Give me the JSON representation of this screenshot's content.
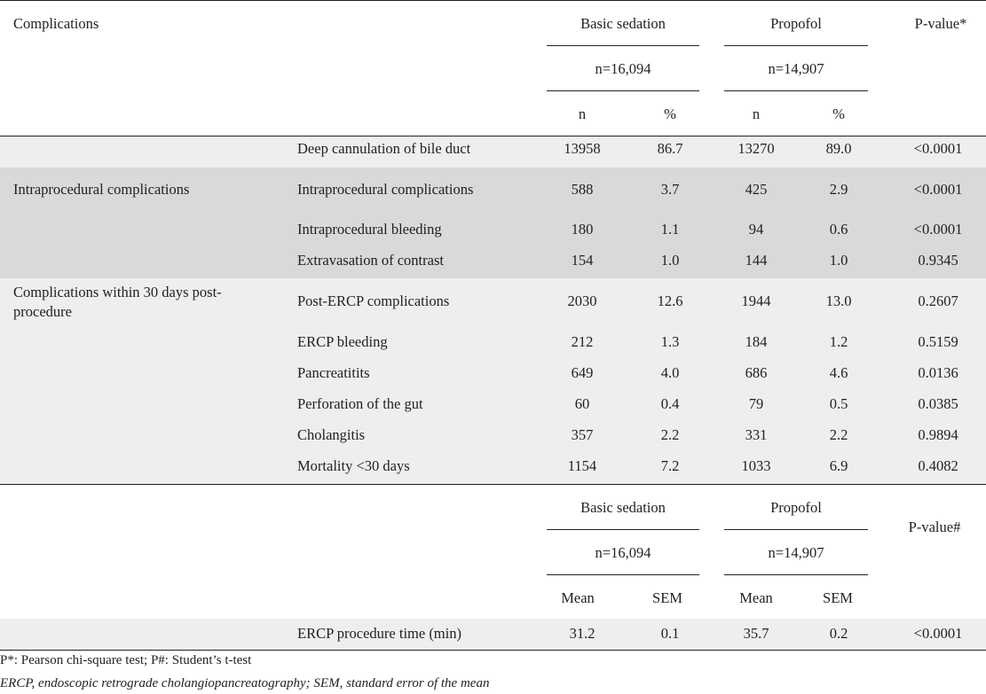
{
  "header": {
    "complications": "Complications",
    "group1": "Basic sedation",
    "group2": "Propofol",
    "pvalue": "P-value*",
    "n1": "n=16,094",
    "n2": "n=14,907",
    "sub": [
      "n",
      "%",
      "n",
      "%"
    ]
  },
  "rows": [
    {
      "group": "",
      "item": "Deep cannulation of bile duct",
      "n1": "13958",
      "p1": "86.7",
      "n2": "13270",
      "p2": "89.0",
      "pv": "<0.0001"
    },
    {
      "group": "Intraprocedural complications",
      "item": "Intraprocedural complications",
      "n1": "588",
      "p1": "3.7",
      "n2": "425",
      "p2": "2.9",
      "pv": "<0.0001"
    },
    {
      "group": "",
      "item": "Intraprocedural bleeding",
      "n1": "180",
      "p1": "1.1",
      "n2": "94",
      "p2": "0.6",
      "pv": "<0.0001"
    },
    {
      "group": "",
      "item": "Extravasation of contrast",
      "n1": "154",
      "p1": "1.0",
      "n2": "144",
      "p2": "1.0",
      "pv": "0.9345"
    },
    {
      "group_line1": "Complications within 30 days post-",
      "group_line2": "procedure",
      "item": "Post-ERCP complications",
      "n1": "2030",
      "p1": "12.6",
      "n2": "1944",
      "p2": "13.0",
      "pv": "0.2607"
    },
    {
      "group": "",
      "item": "ERCP bleeding",
      "n1": "212",
      "p1": "1.3",
      "n2": "184",
      "p2": "1.2",
      "pv": "0.5159"
    },
    {
      "group": "",
      "item": "Pancreatitits",
      "n1": "649",
      "p1": "4.0",
      "n2": "686",
      "p2": "4.6",
      "pv": "0.0136"
    },
    {
      "group": "",
      "item": "Perforation of the gut",
      "n1": "60",
      "p1": "0.4",
      "n2": "79",
      "p2": "0.5",
      "pv": "0.0385"
    },
    {
      "group": "",
      "item": "Cholangitis",
      "n1": "357",
      "p1": "2.2",
      "n2": "331",
      "p2": "2.2",
      "pv": "0.9894"
    },
    {
      "group": "",
      "item": "Mortality <30 days",
      "n1": "1154",
      "p1": "7.2",
      "n2": "1033",
      "p2": "6.9",
      "pv": "0.4082"
    }
  ],
  "header2": {
    "group1": "Basic sedation",
    "group2": "Propofol",
    "pvalue": "P-value#",
    "n1": "n=16,094",
    "n2": "n=14,907",
    "sub": [
      "Mean",
      "SEM",
      "Mean",
      "SEM"
    ]
  },
  "time_row": {
    "item": "ERCP procedure time (min)",
    "m1": "31.2",
    "s1": "0.1",
    "m2": "35.7",
    "s2": "0.2",
    "pv": "<0.0001"
  },
  "footnotes": {
    "tests": "P*: Pearson chi-square test; P#: Student’s t-test",
    "abbrev": "ERCP, endoscopic retrograde cholangiopancreatography; SEM, standard error of the mean"
  },
  "colors": {
    "band_light": "#eeeeee",
    "band_dark": "#d8d9da",
    "rule": "#222222"
  }
}
